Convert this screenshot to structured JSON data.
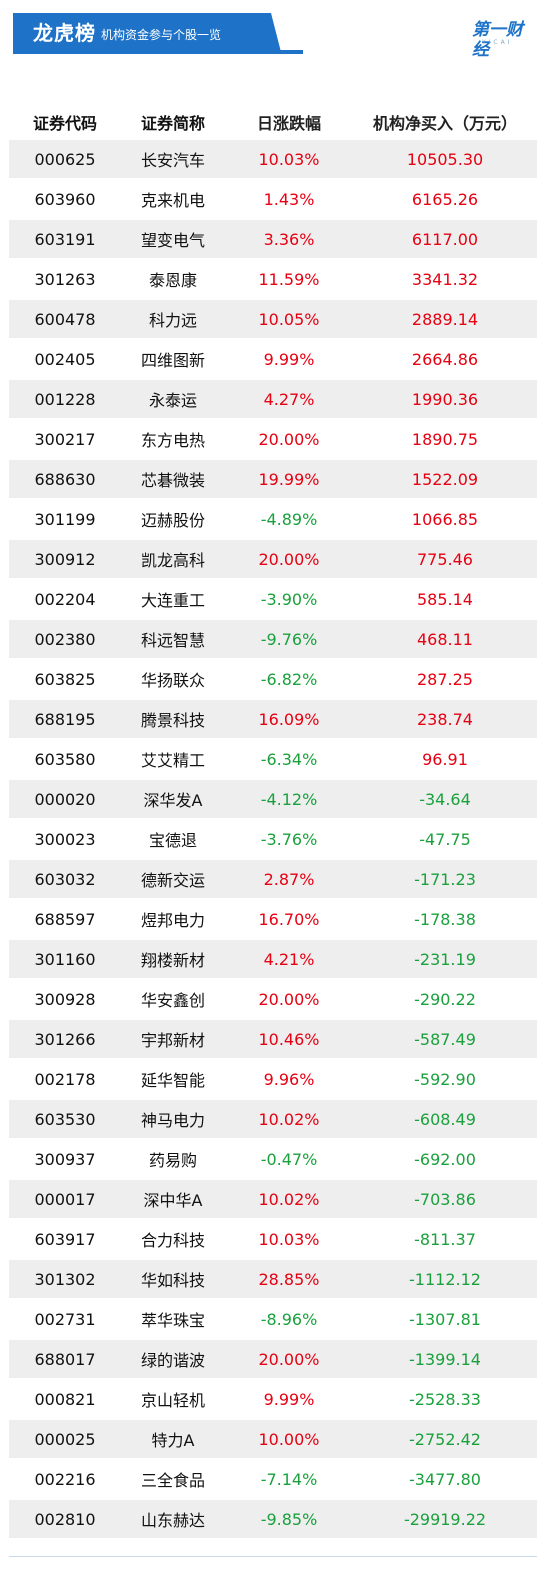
{
  "header": {
    "title": "龙虎榜",
    "subtitle": "机构资金参与个股一览",
    "logo_text": "第一财经",
    "logo_sub": "YICAI"
  },
  "colors": {
    "brand_blue": "#1e73c8",
    "up_red": "#e60012",
    "down_green": "#1aa13c",
    "row_shade": "#eeeeee"
  },
  "table": {
    "headers": [
      "证券代码",
      "证券简称",
      "日涨跌幅",
      "机构净买入（万元）"
    ],
    "rows": [
      {
        "code": "000625",
        "name": "长安汽车",
        "change": "10.03%",
        "net": "10505.30",
        "change_dir": "up",
        "net_dir": "up"
      },
      {
        "code": "603960",
        "name": "克来机电",
        "change": "1.43%",
        "net": "6165.26",
        "change_dir": "up",
        "net_dir": "up"
      },
      {
        "code": "603191",
        "name": "望变电气",
        "change": "3.36%",
        "net": "6117.00",
        "change_dir": "up",
        "net_dir": "up"
      },
      {
        "code": "301263",
        "name": "泰恩康",
        "change": "11.59%",
        "net": "3341.32",
        "change_dir": "up",
        "net_dir": "up"
      },
      {
        "code": "600478",
        "name": "科力远",
        "change": "10.05%",
        "net": "2889.14",
        "change_dir": "up",
        "net_dir": "up"
      },
      {
        "code": "002405",
        "name": "四维图新",
        "change": "9.99%",
        "net": "2664.86",
        "change_dir": "up",
        "net_dir": "up"
      },
      {
        "code": "001228",
        "name": "永泰运",
        "change": "4.27%",
        "net": "1990.36",
        "change_dir": "up",
        "net_dir": "up"
      },
      {
        "code": "300217",
        "name": "东方电热",
        "change": "20.00%",
        "net": "1890.75",
        "change_dir": "up",
        "net_dir": "up"
      },
      {
        "code": "688630",
        "name": "芯碁微装",
        "change": "19.99%",
        "net": "1522.09",
        "change_dir": "up",
        "net_dir": "up"
      },
      {
        "code": "301199",
        "name": "迈赫股份",
        "change": "-4.89%",
        "net": "1066.85",
        "change_dir": "down",
        "net_dir": "up"
      },
      {
        "code": "300912",
        "name": "凯龙高科",
        "change": "20.00%",
        "net": "775.46",
        "change_dir": "up",
        "net_dir": "up"
      },
      {
        "code": "002204",
        "name": "大连重工",
        "change": "-3.90%",
        "net": "585.14",
        "change_dir": "down",
        "net_dir": "up"
      },
      {
        "code": "002380",
        "name": "科远智慧",
        "change": "-9.76%",
        "net": "468.11",
        "change_dir": "down",
        "net_dir": "up"
      },
      {
        "code": "603825",
        "name": "华扬联众",
        "change": "-6.82%",
        "net": "287.25",
        "change_dir": "down",
        "net_dir": "up"
      },
      {
        "code": "688195",
        "name": "腾景科技",
        "change": "16.09%",
        "net": "238.74",
        "change_dir": "up",
        "net_dir": "up"
      },
      {
        "code": "603580",
        "name": "艾艾精工",
        "change": "-6.34%",
        "net": "96.91",
        "change_dir": "down",
        "net_dir": "up"
      },
      {
        "code": "000020",
        "name": "深华发A",
        "change": "-4.12%",
        "net": "-34.64",
        "change_dir": "down",
        "net_dir": "down"
      },
      {
        "code": "300023",
        "name": "宝德退",
        "change": "-3.76%",
        "net": "-47.75",
        "change_dir": "down",
        "net_dir": "down"
      },
      {
        "code": "603032",
        "name": "德新交运",
        "change": "2.87%",
        "net": "-171.23",
        "change_dir": "up",
        "net_dir": "down"
      },
      {
        "code": "688597",
        "name": "煜邦电力",
        "change": "16.70%",
        "net": "-178.38",
        "change_dir": "up",
        "net_dir": "down"
      },
      {
        "code": "301160",
        "name": "翔楼新材",
        "change": "4.21%",
        "net": "-231.19",
        "change_dir": "up",
        "net_dir": "down"
      },
      {
        "code": "300928",
        "name": "华安鑫创",
        "change": "20.00%",
        "net": "-290.22",
        "change_dir": "up",
        "net_dir": "down"
      },
      {
        "code": "301266",
        "name": "宇邦新材",
        "change": "10.46%",
        "net": "-587.49",
        "change_dir": "up",
        "net_dir": "down"
      },
      {
        "code": "002178",
        "name": "延华智能",
        "change": "9.96%",
        "net": "-592.90",
        "change_dir": "up",
        "net_dir": "down"
      },
      {
        "code": "603530",
        "name": "神马电力",
        "change": "10.02%",
        "net": "-608.49",
        "change_dir": "up",
        "net_dir": "down"
      },
      {
        "code": "300937",
        "name": "药易购",
        "change": "-0.47%",
        "net": "-692.00",
        "change_dir": "down",
        "net_dir": "down"
      },
      {
        "code": "000017",
        "name": "深中华A",
        "change": "10.02%",
        "net": "-703.86",
        "change_dir": "up",
        "net_dir": "down"
      },
      {
        "code": "603917",
        "name": "合力科技",
        "change": "10.03%",
        "net": "-811.37",
        "change_dir": "up",
        "net_dir": "down"
      },
      {
        "code": "301302",
        "name": "华如科技",
        "change": "28.85%",
        "net": "-1112.12",
        "change_dir": "up",
        "net_dir": "down"
      },
      {
        "code": "002731",
        "name": "萃华珠宝",
        "change": "-8.96%",
        "net": "-1307.81",
        "change_dir": "down",
        "net_dir": "down"
      },
      {
        "code": "688017",
        "name": "绿的谐波",
        "change": "20.00%",
        "net": "-1399.14",
        "change_dir": "up",
        "net_dir": "down"
      },
      {
        "code": "000821",
        "name": "京山轻机",
        "change": "9.99%",
        "net": "-2528.33",
        "change_dir": "up",
        "net_dir": "down"
      },
      {
        "code": "000025",
        "name": "特力A",
        "change": "10.00%",
        "net": "-2752.42",
        "change_dir": "up",
        "net_dir": "down"
      },
      {
        "code": "002216",
        "name": "三全食品",
        "change": "-7.14%",
        "net": "-3477.80",
        "change_dir": "down",
        "net_dir": "down"
      },
      {
        "code": "002810",
        "name": "山东赫达",
        "change": "-9.85%",
        "net": "-29919.22",
        "change_dir": "down",
        "net_dir": "down"
      }
    ]
  }
}
